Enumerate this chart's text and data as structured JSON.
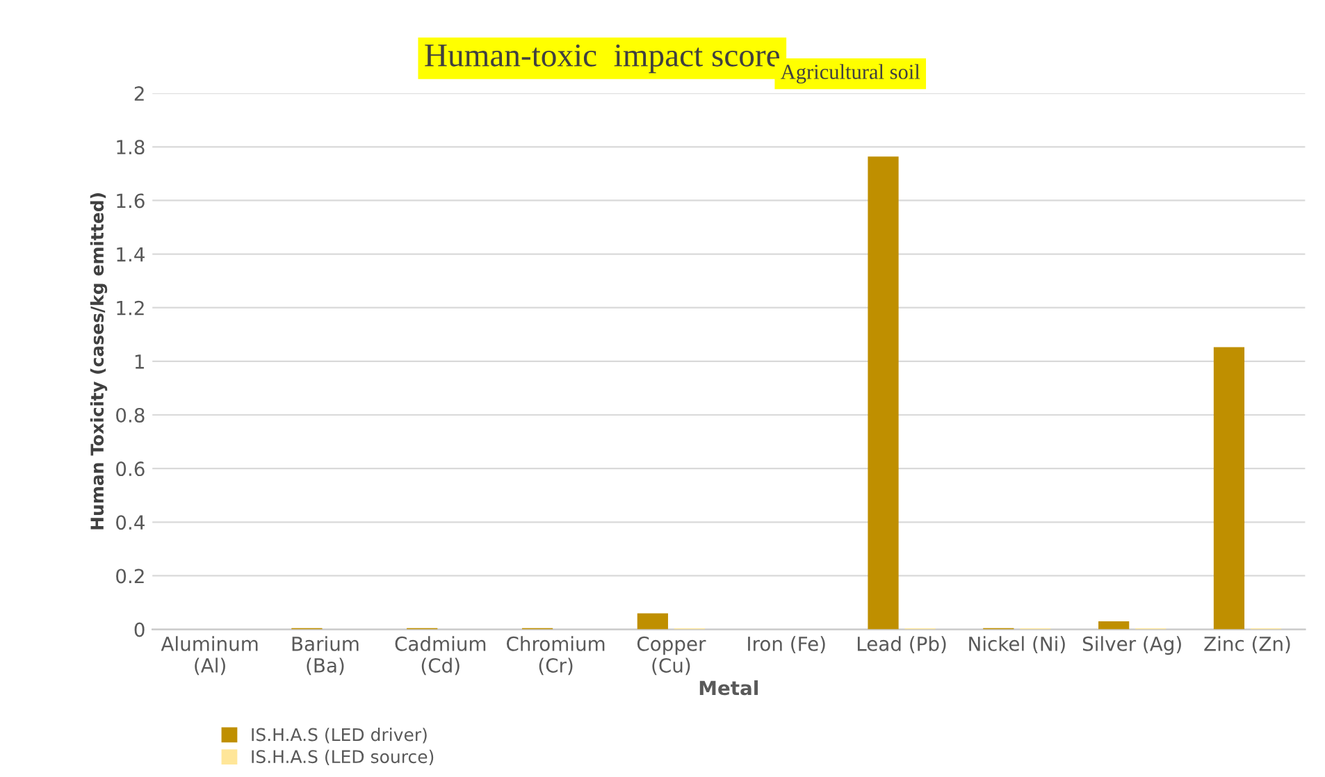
{
  "chart_data": {
    "type": "bar",
    "title": "Human-toxic  impact score$_{Agricultural soil}$",
    "xlabel": "Metal",
    "ylabel": "Human Toxicity (cases/kg emitted)",
    "categories": [
      "Aluminum\n(Al)",
      "Barium\n(Ba)",
      "Cadmium\n(Cd)",
      "Chromium\n(Cr)",
      "Copper\n(Cu)",
      "Iron (Fe)",
      "Lead (Pb)",
      "Nickel (Ni)",
      "Silver (Ag)",
      "Zinc (Zn)"
    ],
    "series": [
      {
        "name": "IS.H.A.S (LED driver)",
        "color": "#bf8f00",
        "values": [
          0,
          0.005,
          0.005,
          0.005,
          0.06,
          0,
          1.764,
          0.005,
          0.03,
          1.053
        ]
      },
      {
        "name": "IS.H.A.S (LED source)",
        "color": "#ffe699",
        "values": [
          0,
          0,
          0,
          0,
          0.004,
          0,
          0.004,
          0.004,
          0.004,
          0.004
        ]
      }
    ],
    "ylim": [
      0,
      2
    ],
    "yticks": [
      0,
      0.2,
      0.4,
      0.6,
      0.8,
      1,
      1.2,
      1.4,
      1.6,
      1.8,
      2
    ],
    "grid": "y",
    "legend": "bottom left"
  }
}
